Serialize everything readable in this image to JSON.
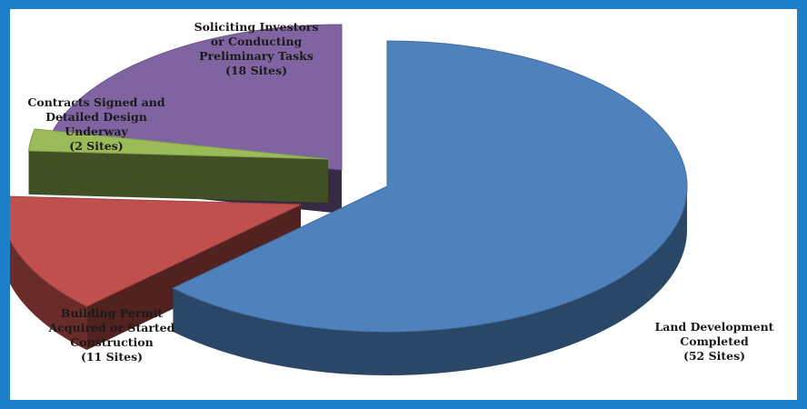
{
  "chart_data": {
    "type": "pie",
    "style": "3d-exploded",
    "slices": [
      {
        "key": "land",
        "label_lines": [
          "Land Development",
          "Completed",
          "(52 Sites)"
        ],
        "value": 52,
        "color": "#4F81BD"
      },
      {
        "key": "permit",
        "label_lines": [
          "Building Permit",
          "Acquired or Started",
          "Construction",
          "(11 Sites)"
        ],
        "value": 11,
        "color": "#C0504D"
      },
      {
        "key": "contract",
        "label_lines": [
          "Contracts Signed and",
          "Detailed Design",
          "Underway",
          "(2 Sites)"
        ],
        "value": 2,
        "color": "#9BBB59"
      },
      {
        "key": "invest",
        "label_lines": [
          "Soliciting Investors",
          "or Conducting",
          "Preliminary Tasks",
          "(18 Sites)"
        ],
        "value": 18,
        "color": "#8064A2"
      }
    ]
  }
}
